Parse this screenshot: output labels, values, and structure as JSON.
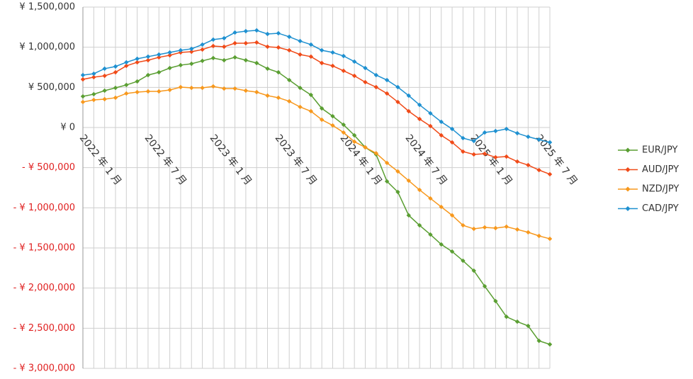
{
  "chart_data": {
    "type": "line",
    "categories": [
      "2022 年 1 月",
      null,
      null,
      null,
      null,
      null,
      "2022 年 7 月",
      null,
      null,
      null,
      null,
      null,
      "2023 年 1 月",
      null,
      null,
      null,
      null,
      null,
      "2023 年 7 月",
      null,
      null,
      null,
      null,
      null,
      "2024 年 1 月",
      null,
      null,
      null,
      null,
      null,
      "2024 年 7 月",
      null,
      null,
      null,
      null,
      null,
      "2025 年 1 月",
      null,
      null,
      null,
      null,
      null,
      "2025 年 7 月",
      null
    ],
    "series": [
      {
        "name": "EUR/JPY",
        "color": "#5a9e32",
        "values": [
          388000,
          415000,
          459000,
          494000,
          530000,
          574000,
          653000,
          688000,
          741000,
          777000,
          794000,
          830000,
          865000,
          838000,
          874000,
          838000,
          803000,
          733000,
          688000,
          591000,
          494000,
          406000,
          238000,
          141000,
          35000,
          -97000,
          -247000,
          -335000,
          -671000,
          -803000,
          -1094000,
          -1218000,
          -1333000,
          -1456000,
          -1545000,
          -1659000,
          -1783000,
          -1977000,
          -2162000,
          -2357000,
          -2418000,
          -2471000,
          -2657000,
          -2701000
        ]
      },
      {
        "name": "AUD/JPY",
        "color": "#f04a18",
        "values": [
          600000,
          627000,
          644000,
          688000,
          768000,
          812000,
          838000,
          874000,
          900000,
          935000,
          944000,
          971000,
          1015000,
          1006000,
          1050000,
          1050000,
          1059000,
          1006000,
          997000,
          962000,
          909000,
          883000,
          803000,
          768000,
          706000,
          644000,
          565000,
          503000,
          424000,
          318000,
          203000,
          106000,
          18000,
          -97000,
          -185000,
          -300000,
          -335000,
          -327000,
          -371000,
          -362000,
          -424000,
          -468000,
          -530000,
          -582000
        ]
      },
      {
        "name": "NZD/JPY",
        "color": "#f7981d",
        "values": [
          318000,
          344000,
          353000,
          371000,
          424000,
          441000,
          450000,
          450000,
          468000,
          503000,
          494000,
          494000,
          512000,
          485000,
          485000,
          459000,
          441000,
          397000,
          371000,
          327000,
          256000,
          203000,
          97000,
          26000,
          -62000,
          -177000,
          -247000,
          -320000,
          -441000,
          -547000,
          -662000,
          -777000,
          -883000,
          -989000,
          -1094000,
          -1218000,
          -1262000,
          -1244000,
          -1253000,
          -1235000,
          -1270000,
          -1305000,
          -1350000,
          -1386000
        ]
      },
      {
        "name": "CAD/JPY",
        "color": "#1e90d0",
        "values": [
          653000,
          670000,
          733000,
          760000,
          812000,
          856000,
          883000,
          909000,
          935000,
          962000,
          980000,
          1033000,
          1095000,
          1112000,
          1183000,
          1200000,
          1210000,
          1165000,
          1174000,
          1130000,
          1077000,
          1033000,
          962000,
          935000,
          891000,
          821000,
          741000,
          653000,
          591000,
          503000,
          397000,
          282000,
          177000,
          71000,
          -18000,
          -132000,
          -168000,
          -62000,
          -44000,
          -18000,
          -71000,
          -115000,
          -150000,
          -185000
        ]
      }
    ],
    "ylim": [
      -3000000,
      1500000
    ],
    "yticks": [
      {
        "value": 1500000,
        "label": "¥ 1,500,000"
      },
      {
        "value": 1000000,
        "label": "¥ 1,000,000"
      },
      {
        "value": 500000,
        "label": "¥ 500,000"
      },
      {
        "value": 0,
        "label": "¥ 0"
      },
      {
        "value": -500000,
        "label": "- ¥ 500,000"
      },
      {
        "value": -1000000,
        "label": "- ¥ 1,000,000"
      },
      {
        "value": -1500000,
        "label": "- ¥ 1,500,000"
      },
      {
        "value": -2000000,
        "label": "- ¥ 2,000,000"
      },
      {
        "value": -2500000,
        "label": "- ¥ 2,500,000"
      },
      {
        "value": -3000000,
        "label": "- ¥ 3,000,000"
      }
    ],
    "grid": true,
    "legend": "right"
  }
}
